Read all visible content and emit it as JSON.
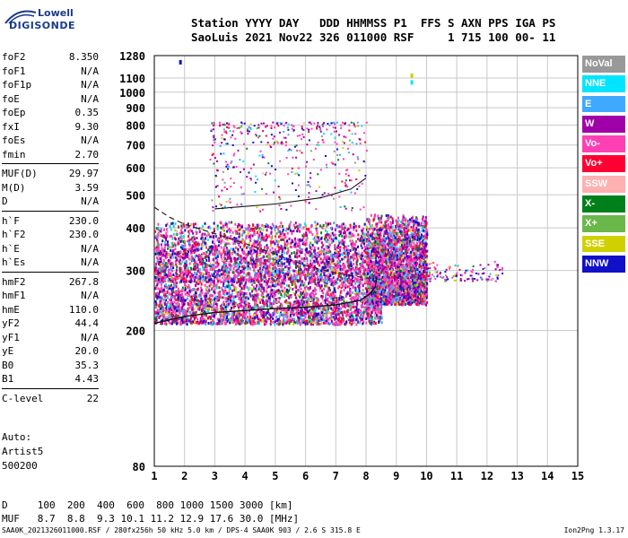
{
  "logo": {
    "line1": "Lowell",
    "line2": "DIGISONDE"
  },
  "header": {
    "row1": "Station YYYY DAY   DDD HHMMSS P1  FFS S AXN PPS IGA PS",
    "row2": "SaoLuis 2021 Nov22 326 011000 RSF     1 715 100 00- 11"
  },
  "params": [
    {
      "name": "foF2",
      "value": "8.350"
    },
    {
      "name": "foF1",
      "value": "N/A"
    },
    {
      "name": "foF1p",
      "value": "N/A"
    },
    {
      "name": "foE",
      "value": "N/A"
    },
    {
      "name": "foEp",
      "value": "0.35"
    },
    {
      "name": "fxI",
      "value": "9.30"
    },
    {
      "name": "foEs",
      "value": "N/A"
    },
    {
      "name": "fmin",
      "value": "2.70"
    }
  ],
  "params2": [
    {
      "name": "MUF(D)",
      "value": "29.97"
    },
    {
      "name": "M(D)",
      "value": "3.59"
    },
    {
      "name": "D",
      "value": "N/A"
    }
  ],
  "params3": [
    {
      "name": "h`F",
      "value": "230.0"
    },
    {
      "name": "h`F2",
      "value": "230.0"
    },
    {
      "name": "h`E",
      "value": "N/A"
    },
    {
      "name": "h`Es",
      "value": "N/A"
    }
  ],
  "params4": [
    {
      "name": "hmF2",
      "value": "267.8"
    },
    {
      "name": "hmF1",
      "value": "N/A"
    },
    {
      "name": "hmE",
      "value": "110.0"
    },
    {
      "name": "yF2",
      "value": "44.4"
    },
    {
      "name": "yF1",
      "value": "N/A"
    },
    {
      "name": "yE",
      "value": "20.0"
    },
    {
      "name": "B0",
      "value": "35.3"
    },
    {
      "name": "B1",
      "value": "4.43"
    }
  ],
  "params5": [
    {
      "name": "C-level",
      "value": "22"
    }
  ],
  "auto": {
    "line1": "Auto:",
    "line2": "Artist5",
    "line3": "500200"
  },
  "legend": [
    {
      "label": "NoVal",
      "color": "#999999"
    },
    {
      "label": "NNE",
      "color": "#00e5ff"
    },
    {
      "label": "E",
      "color": "#3fa9ff"
    },
    {
      "label": "W",
      "color": "#a000a8"
    },
    {
      "label": "Vo-",
      "color": "#ff3fb4"
    },
    {
      "label": "Vo+",
      "color": "#ff0033"
    },
    {
      "label": "SSW",
      "color": "#ffb0b0"
    },
    {
      "label": "X-",
      "color": "#00801a"
    },
    {
      "label": "X+",
      "color": "#6ab84a"
    },
    {
      "label": "SSE",
      "color": "#d0d000"
    },
    {
      "label": "NNW",
      "color": "#1010c8"
    }
  ],
  "bottom_table": {
    "row1": "D     100  200  400  600  800 1000 1500 3000 [km]",
    "row2": "MUF   8.7  8.8  9.3 10.1 11.2 12.9 17.6 30.0 [MHz]"
  },
  "footer": {
    "left": "SAA0K_2021326011000.RSF / 280fx256h 50 kHz 5.0 km / DPS-4 SAA0K 903 / 2.6 S 315.8 E",
    "right": "Ion2Png 1.3.17"
  },
  "chart_data": {
    "type": "scatter",
    "title": "",
    "xlabel": "",
    "ylabel": "",
    "xlim": [
      1,
      15
    ],
    "ylim": [
      80,
      1280
    ],
    "y_scale": "log",
    "x_ticks": [
      1,
      2,
      3,
      4,
      5,
      6,
      7,
      8,
      9,
      10,
      11,
      12,
      13,
      14,
      15
    ],
    "y_ticks": [
      80,
      200,
      300,
      400,
      500,
      600,
      700,
      800,
      900,
      1000,
      1100,
      1280
    ],
    "grid": true,
    "point_clusters": [
      {
        "name": "main_trace_low",
        "x": [
          1.0,
          8.5
        ],
        "y": [
          210,
          290
        ],
        "density": "high"
      },
      {
        "name": "main_trace_mid",
        "x": [
          1.0,
          8.0
        ],
        "y": [
          280,
          420
        ],
        "density": "high"
      },
      {
        "name": "f_region_spread",
        "x": [
          8.0,
          10.0
        ],
        "y": [
          240,
          440
        ],
        "density": "high"
      },
      {
        "name": "tail",
        "x": [
          10.0,
          12.5
        ],
        "y": [
          280,
          320
        ],
        "density": "low"
      },
      {
        "name": "second_hop",
        "x": [
          2.8,
          8.0
        ],
        "y": [
          450,
          820
        ],
        "density": "medium"
      }
    ],
    "fitted_profile": [
      {
        "x": 1.0,
        "y": 210
      },
      {
        "x": 2.0,
        "y": 220
      },
      {
        "x": 3.0,
        "y": 226
      },
      {
        "x": 4.0,
        "y": 229
      },
      {
        "x": 5.0,
        "y": 232
      },
      {
        "x": 6.0,
        "y": 234
      },
      {
        "x": 7.0,
        "y": 238
      },
      {
        "x": 7.8,
        "y": 245
      },
      {
        "x": 8.1,
        "y": 255
      },
      {
        "x": 8.3,
        "y": 268
      },
      {
        "x": 8.35,
        "y": 285
      }
    ],
    "second_hop_profile": [
      {
        "x": 3.0,
        "y": 455
      },
      {
        "x": 5.0,
        "y": 470
      },
      {
        "x": 6.5,
        "y": 490
      },
      {
        "x": 7.5,
        "y": 520
      },
      {
        "x": 8.0,
        "y": 560
      }
    ],
    "dashed_curve": [
      {
        "x": 1.0,
        "y": 460
      },
      {
        "x": 1.5,
        "y": 430
      },
      {
        "x": 2.0,
        "y": 410
      },
      {
        "x": 3.0,
        "y": 385
      },
      {
        "x": 4.0,
        "y": 360
      },
      {
        "x": 5.0,
        "y": 335
      },
      {
        "x": 6.0,
        "y": 310
      },
      {
        "x": 7.0,
        "y": 295
      },
      {
        "x": 8.0,
        "y": 285
      },
      {
        "x": 8.3,
        "y": 285
      }
    ],
    "isolated_points": [
      {
        "x": 1.85,
        "y": 1220,
        "series": "NNW"
      },
      {
        "x": 9.5,
        "y": 1115,
        "series": "SSE"
      },
      {
        "x": 9.5,
        "y": 1065,
        "series": "NNE"
      }
    ]
  }
}
